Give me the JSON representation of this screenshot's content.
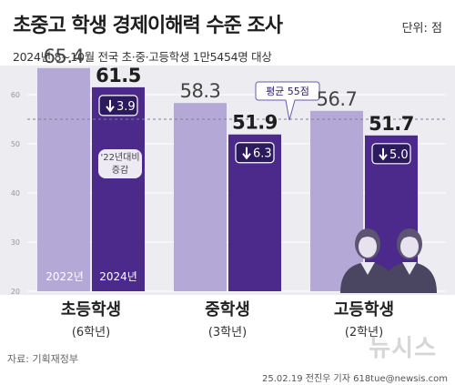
{
  "header": {
    "title": "초중고 학생 경제이해력 수준 조사",
    "unit": "단위: 점",
    "subtitle": "2024년 8~10월 전국 초·중·고등학생 1만5454명 대상"
  },
  "footer": {
    "source": "자료: 기획재정부",
    "credit": "25.02.19 전진우 기자 618tue@newsis.com",
    "watermark": "뉴시스"
  },
  "legend": {
    "year_a": "2022년",
    "year_b": "2024년",
    "compare_note_line1": "'22년대비",
    "compare_note_line2": "증감"
  },
  "average_label": "평균 55점",
  "colors": {
    "bar_2022": "#b3a8d6",
    "bar_2024": "#4b2a8b",
    "background_band": "#ececf1",
    "average_line": "#7f7f9a",
    "change_box": "#2c1a5e"
  },
  "chart_data": {
    "type": "bar",
    "title": "초중고 학생 경제이해력 수준 조사",
    "ylim": [
      20,
      65
    ],
    "yticks": [
      20,
      30,
      40,
      50,
      60
    ],
    "average": 55,
    "categories": [
      "초등학생",
      "중학생",
      "고등학생"
    ],
    "category_sublabels": [
      "(6학년)",
      "(3학년)",
      "(2학년)"
    ],
    "series": [
      {
        "name": "2022년",
        "values": [
          65.4,
          58.3,
          56.7
        ]
      },
      {
        "name": "2024년",
        "values": [
          61.5,
          51.9,
          51.7
        ]
      }
    ],
    "value_labels_2022": [
      "65.4",
      "58.3",
      "56.7"
    ],
    "value_labels_2024": [
      "61.5",
      "51.9",
      "51.7"
    ],
    "changes": [
      "3.9",
      "6.3",
      "5.0"
    ],
    "change_direction": "down"
  }
}
